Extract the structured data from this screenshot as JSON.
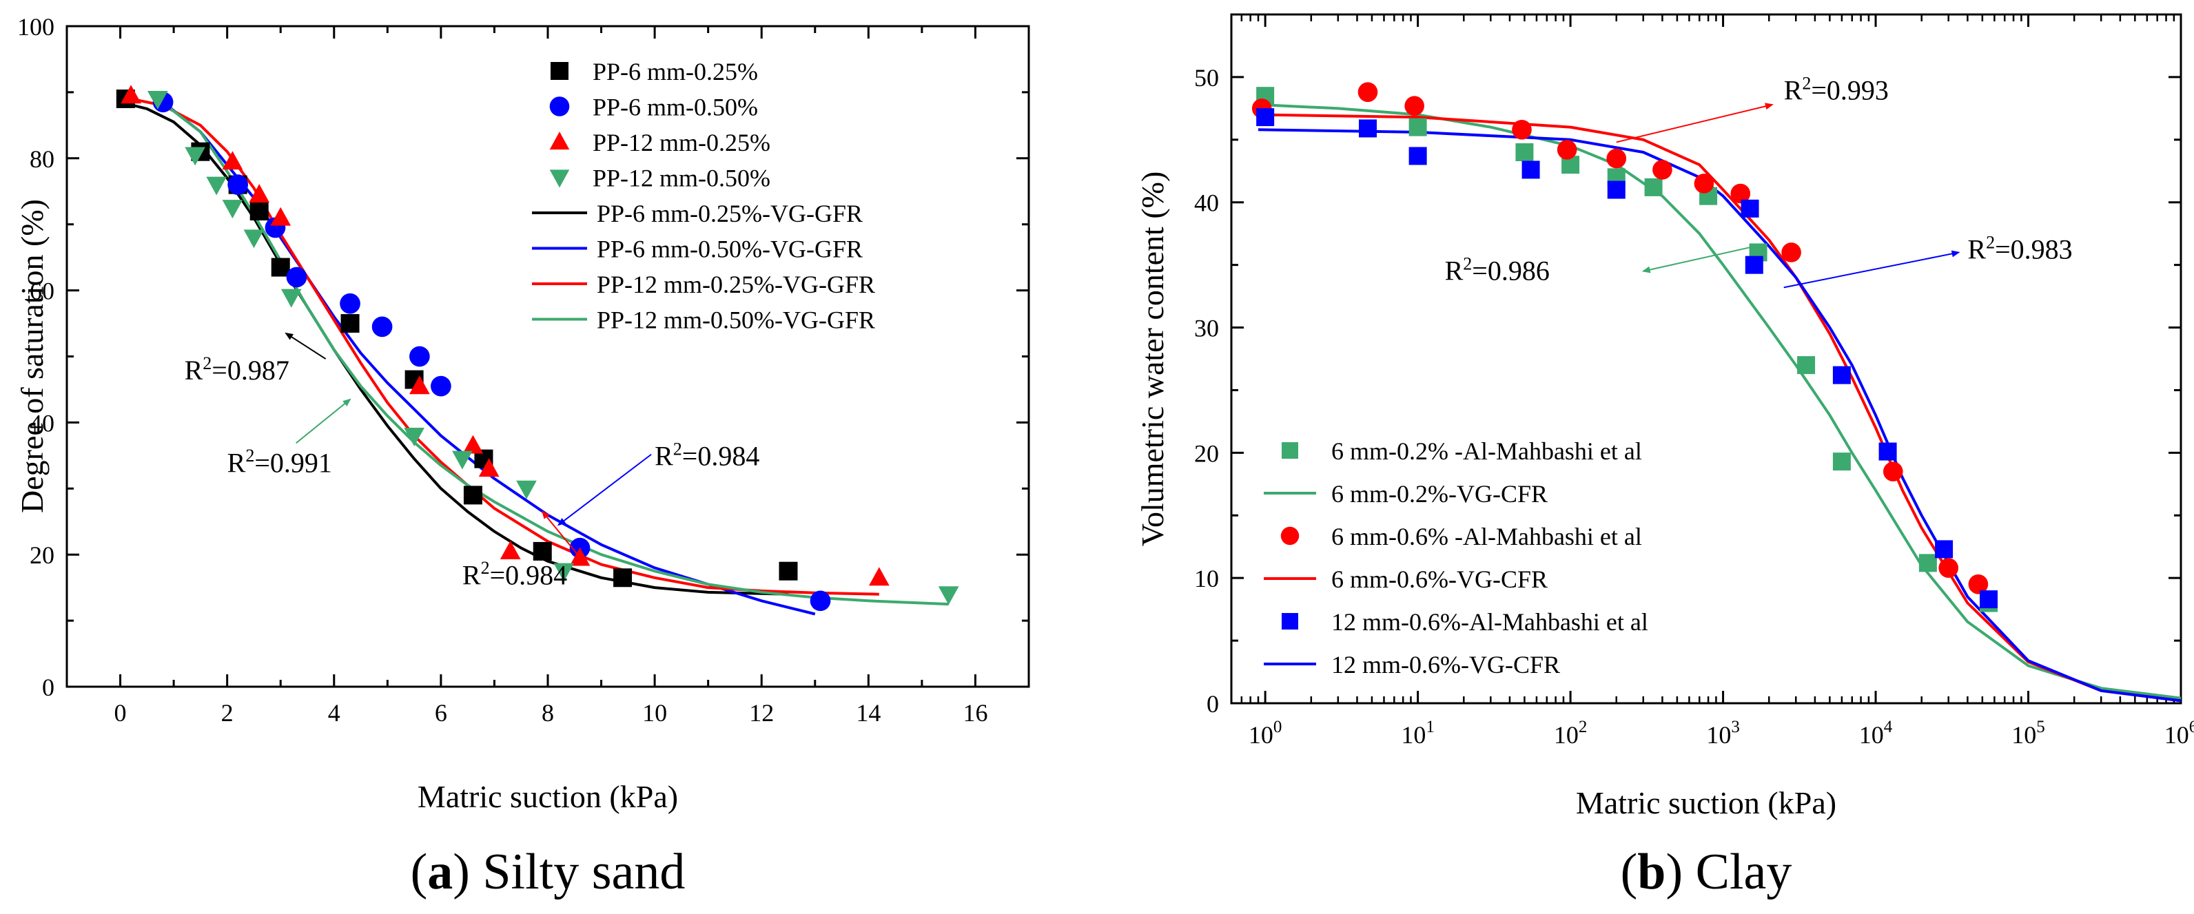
{
  "colors": {
    "black": "#000000",
    "blue": "#0000ff",
    "red": "#ff0000",
    "green": "#3caa6e"
  },
  "chart_data": [
    {
      "type": "scatter",
      "panel_letter": "a",
      "panel_name": " Silty sand",
      "xlabel": "Matric suction (kPa)",
      "ylabel": "Degree of saturation (%)",
      "xlim": [
        -1,
        17
      ],
      "ylim": [
        0,
        100
      ],
      "xticks": [
        0,
        2,
        4,
        6,
        8,
        10,
        12,
        14,
        16
      ],
      "yticks": [
        0,
        20,
        40,
        60,
        80,
        100
      ],
      "legend_position": "top-right",
      "points": [
        {
          "name": "PP-6 mm-0.25%",
          "marker": "square",
          "color": "#000000",
          "x": [
            0.1,
            1.5,
            2.2,
            2.6,
            3.0,
            4.3,
            5.5,
            6.6,
            6.8,
            7.9,
            9.4,
            12.5
          ],
          "y": [
            89,
            81,
            76,
            72,
            63.5,
            55,
            46.5,
            29,
            34.5,
            20.5,
            16.5,
            17.5
          ]
        },
        {
          "name": "PP-6 mm-0.50%",
          "marker": "circle",
          "color": "#0000ff",
          "x": [
            0.8,
            2.2,
            2.9,
            3.3,
            4.3,
            4.9,
            5.6,
            6.0,
            8.6,
            13.1
          ],
          "y": [
            88.5,
            76,
            69.5,
            62,
            58,
            54.5,
            50,
            45.5,
            21,
            13
          ]
        },
        {
          "name": "PP-12 mm-0.25%",
          "marker": "triangle-up",
          "color": "#ff0000",
          "x": [
            0.2,
            2.1,
            2.6,
            3.0,
            5.6,
            6.6,
            6.9,
            7.3,
            8.6,
            14.2
          ],
          "y": [
            89.5,
            79.5,
            74.5,
            71,
            45.5,
            36.5,
            33,
            20.5,
            19.5,
            16.5
          ]
        },
        {
          "name": "PP-12 mm-0.50%",
          "marker": "triangle-down",
          "color": "#3caa6e",
          "x": [
            0.7,
            1.4,
            1.8,
            2.1,
            2.5,
            3.2,
            5.5,
            6.4,
            7.6,
            8.3,
            15.5
          ],
          "y": [
            89,
            80.5,
            76,
            72.5,
            68,
            59,
            38,
            34.5,
            30,
            17.5,
            14
          ]
        }
      ],
      "curves": [
        {
          "name": "PP-6 mm-0.25%-VG-GFR",
          "color": "#000000",
          "x": [
            0,
            0.5,
            1,
            1.5,
            2,
            2.5,
            3,
            3.5,
            4,
            4.5,
            5,
            5.5,
            6,
            6.5,
            7,
            7.5,
            8,
            9,
            10,
            11,
            12.5
          ],
          "y": [
            88.5,
            87.5,
            85.5,
            82,
            77,
            71,
            64,
            57.5,
            51,
            45,
            39.5,
            34.5,
            30,
            26.5,
            23.5,
            21,
            19,
            16.5,
            15,
            14.3,
            14
          ]
        },
        {
          "name": "PP-6 mm-0.50%-VG-GFR",
          "color": "#0000ff",
          "x": [
            0.8,
            1.5,
            2,
            2.5,
            3,
            3.5,
            4,
            4.5,
            5,
            5.5,
            6,
            7,
            8,
            9,
            10,
            11,
            12,
            13
          ],
          "y": [
            88.5,
            84,
            79,
            74,
            68,
            62,
            56,
            50.5,
            46,
            42,
            38,
            31.5,
            26,
            21.5,
            18,
            15.5,
            13,
            11
          ]
        },
        {
          "name": "PP-12 mm-0.25%-VG-GFR",
          "color": "#ff0000",
          "x": [
            0.2,
            0.8,
            1.5,
            2,
            2.5,
            3,
            3.5,
            4,
            4.5,
            5,
            5.5,
            6,
            7,
            8,
            9,
            10,
            11,
            12,
            13,
            14.2
          ],
          "y": [
            89,
            88,
            85,
            81,
            75.5,
            68.5,
            62,
            55.5,
            49,
            43,
            38,
            34,
            27,
            22,
            18.5,
            16.5,
            15,
            14.5,
            14.2,
            14
          ]
        },
        {
          "name": "PP-12 mm-0.50%-VG-GFR",
          "color": "#3caa6e",
          "x": [
            0.7,
            1.5,
            2,
            2.5,
            3,
            3.5,
            4,
            4.5,
            5,
            5.5,
            6,
            6.5,
            7,
            8,
            9,
            10,
            11,
            12,
            13,
            14,
            15.5
          ],
          "y": [
            89,
            84,
            78,
            71.5,
            64.5,
            57.5,
            51,
            45.5,
            41,
            37,
            33.5,
            30.5,
            28,
            23.5,
            20,
            17.5,
            15.5,
            14.3,
            13.5,
            13,
            12.5
          ]
        }
      ],
      "annotations": [
        {
          "base": "R",
          "sup": "2",
          "value": "=0.987",
          "color": "#000000",
          "x": 1.2,
          "y": 46.5,
          "arrow_to": [
            3.1,
            53.5
          ]
        },
        {
          "base": "R",
          "sup": "2",
          "value": "=0.991",
          "color": "#3caa6e",
          "x": 2.0,
          "y": 32.5,
          "arrow_to": [
            4.3,
            43.5
          ]
        },
        {
          "base": "R",
          "sup": "2",
          "value": "=0.984",
          "color": "#0000ff",
          "x": 10.0,
          "y": 33.5,
          "arrow_to": [
            8.2,
            24.5
          ]
        },
        {
          "base": "R",
          "sup": "2",
          "value": "=0.984",
          "color": "#ff0000",
          "x": 6.4,
          "y": 15.5,
          "arrow_to": [
            7.9,
            26.5
          ]
        }
      ]
    },
    {
      "type": "scatter",
      "panel_letter": "b",
      "panel_name": " Clay",
      "xlabel": "Matric suction (kPa)",
      "ylabel": "Volumetric water content (%)",
      "xscale": "log",
      "xlim": [
        0.6,
        1000000
      ],
      "ylim": [
        0,
        55
      ],
      "xticks": [
        1,
        10,
        100,
        1000,
        10000,
        100000,
        1000000
      ],
      "xtick_base": "10",
      "xtick_exps": [
        "0",
        "1",
        "2",
        "3",
        "4",
        "5",
        "6"
      ],
      "yticks": [
        0,
        10,
        20,
        30,
        40,
        50
      ],
      "legend_position": "bottom-left",
      "points": [
        {
          "name": "6 mm-0.2% -Al-Mahbashi et al",
          "marker": "square",
          "color": "#3caa6e",
          "x": [
            1,
            10,
            50,
            100,
            200,
            350,
            800,
            1700,
            3500,
            6000,
            22000,
            55000
          ],
          "y": [
            48.5,
            46,
            44,
            43,
            42,
            41.2,
            40.5,
            36,
            27,
            19.3,
            11.2,
            8
          ]
        },
        {
          "name": "6 mm-0.6% -Al-Mahbashi et al",
          "marker": "circle",
          "color": "#ff0000",
          "x": [
            0.95,
            4.7,
            9.5,
            48,
            95,
            200,
            400,
            750,
            1300,
            2800,
            13000,
            30000,
            47000
          ],
          "y": [
            47.5,
            48.8,
            47.7,
            45.8,
            44.2,
            43.5,
            42.6,
            41.5,
            40.7,
            36,
            18.5,
            10.8,
            9.5
          ]
        },
        {
          "name": "12 mm-0.6%-Al-Mahbashi et al",
          "marker": "square",
          "color": "#0000ff",
          "x": [
            1,
            4.7,
            10,
            55,
            200,
            1500,
            1600,
            6000,
            12000,
            28000,
            55000
          ],
          "y": [
            46.8,
            45.9,
            43.7,
            42.6,
            41,
            39.5,
            35,
            26.2,
            20.1,
            12.3,
            8.3
          ]
        }
      ],
      "curves": [
        {
          "name": "6 mm-0.2%-VG-CFR",
          "color": "#3caa6e",
          "x": [
            0.9,
            3,
            10,
            30,
            100,
            200,
            400,
            700,
            1000,
            2000,
            3000,
            5000,
            7000,
            10000,
            20000,
            40000,
            100000,
            300000,
            1000000
          ],
          "y": [
            47.8,
            47.5,
            47,
            46,
            44.5,
            43,
            40.5,
            37.5,
            35,
            30,
            27,
            23,
            20,
            17,
            11,
            6.5,
            3,
            1.2,
            0.4
          ]
        },
        {
          "name": "6 mm-0.6%-VG-CFR",
          "color": "#ff0000",
          "x": [
            0.9,
            10,
            100,
            300,
            700,
            1000,
            2000,
            3000,
            5000,
            7000,
            10000,
            15000,
            20000,
            40000,
            100000,
            300000,
            1000000
          ],
          "y": [
            47,
            46.8,
            46,
            45,
            43,
            41,
            37,
            34,
            29.5,
            26,
            22,
            17,
            14,
            8,
            3.3,
            1,
            0.2
          ]
        },
        {
          "name": "12 mm-0.6%-VG-CFR",
          "color": "#0000ff",
          "x": [
            0.9,
            10,
            100,
            300,
            700,
            1000,
            2000,
            3000,
            5000,
            7000,
            10000,
            15000,
            20000,
            40000,
            100000,
            300000,
            1000000
          ],
          "y": [
            45.8,
            45.6,
            45,
            44,
            42,
            40.5,
            36.5,
            34,
            30,
            27,
            23,
            18,
            15,
            8.5,
            3.4,
            1,
            0.2
          ]
        }
      ],
      "annotations": [
        {
          "base": "R",
          "sup": "2",
          "value": "=0.993",
          "color": "#ff0000",
          "x": 2500,
          "y": 48.2,
          "arrow_from": [
            200,
            44.8
          ],
          "arrow_to": [
            2100,
            47.8
          ]
        },
        {
          "base": "R",
          "sup": "2",
          "value": "=0.983",
          "color": "#0000ff",
          "x": 40000,
          "y": 35.5,
          "arrow_from": [
            2500,
            33.2
          ],
          "arrow_to": [
            35000,
            36
          ]
        },
        {
          "base": "R",
          "sup": "2",
          "value": "=0.986",
          "color": "#3caa6e",
          "x": 15,
          "y": 33.8,
          "arrow_from": [
            1500,
            36.4
          ],
          "arrow_to": [
            300,
            34.5
          ]
        }
      ]
    }
  ]
}
